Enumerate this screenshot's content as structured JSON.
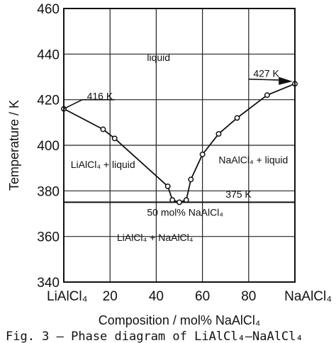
{
  "chart_data": {
    "type": "line",
    "xlabel": "Composition / mol% NaAlCl₄",
    "ylabel": "Temperature / K",
    "xlim": [
      0,
      100
    ],
    "ylim": [
      340,
      460
    ],
    "grid": true,
    "x_ticks": [
      {
        "value": 0,
        "label": "LiAlCl₄"
      },
      {
        "value": 20,
        "label": "20"
      },
      {
        "value": 40,
        "label": "40"
      },
      {
        "value": 60,
        "label": "60"
      },
      {
        "value": 80,
        "label": "80"
      },
      {
        "value": 100,
        "label": "NaAlCl₄"
      }
    ],
    "y_ticks": [
      340,
      360,
      380,
      400,
      420,
      440,
      460
    ],
    "series": [
      {
        "points": [
          [
            0,
            416
          ],
          [
            17,
            407
          ],
          [
            22,
            403
          ],
          [
            45,
            382
          ],
          [
            47,
            376
          ],
          [
            50,
            375
          ],
          [
            53,
            376
          ],
          [
            55,
            385
          ],
          [
            60,
            396
          ],
          [
            67,
            405
          ],
          [
            75,
            412
          ],
          [
            88,
            422
          ],
          [
            100,
            427
          ]
        ]
      }
    ],
    "eutectic": {
      "y": 375
    },
    "annotations": [
      {
        "text": "liquid",
        "x": 36,
        "y": 437
      },
      {
        "text": "416 K",
        "x": 10,
        "y": 420
      },
      {
        "text": "427 K",
        "x": 82,
        "y": 430
      },
      {
        "text": "LiAlCl₄ + liquid",
        "x": 3,
        "y": 390
      },
      {
        "text": "NaAlCl₄ + liquid",
        "x": 67,
        "y": 392
      },
      {
        "text": "375 K",
        "x": 70,
        "y": 377
      },
      {
        "text": "50 mol% NaAlCl₄",
        "x": 36,
        "y": 369
      },
      {
        "text": "LiAlCl₄ + NaAlCl₄",
        "x": 23,
        "y": 358
      }
    ]
  },
  "caption": "Fig. 3 – Phase diagram of LiAlCl₄–NaAlCl₄"
}
